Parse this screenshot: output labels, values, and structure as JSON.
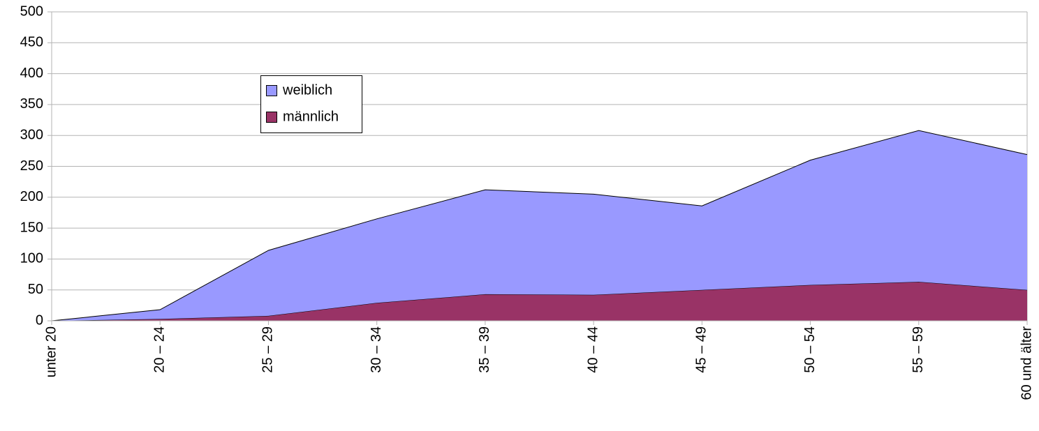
{
  "chart_data": {
    "type": "stacked_area",
    "categories": [
      "unter 20",
      "20 – 24",
      "25 – 29",
      "30 – 34",
      "35 – 39",
      "40 – 44",
      "45 – 49",
      "50 – 54",
      "55 – 59",
      "60 und älter"
    ],
    "series": [
      {
        "name": "männlich",
        "color": "#993366",
        "values": [
          0,
          3,
          8,
          29,
          43,
          42,
          50,
          58,
          63,
          50
        ]
      },
      {
        "name": "weiblich",
        "color": "#9999ff",
        "values": [
          0,
          15,
          106,
          136,
          169,
          163,
          136,
          202,
          245,
          219
        ]
      }
    ],
    "ylim": [
      0,
      500
    ],
    "yticks": [
      0,
      50,
      100,
      150,
      200,
      250,
      300,
      350,
      400,
      450,
      500
    ],
    "grid": true
  }
}
